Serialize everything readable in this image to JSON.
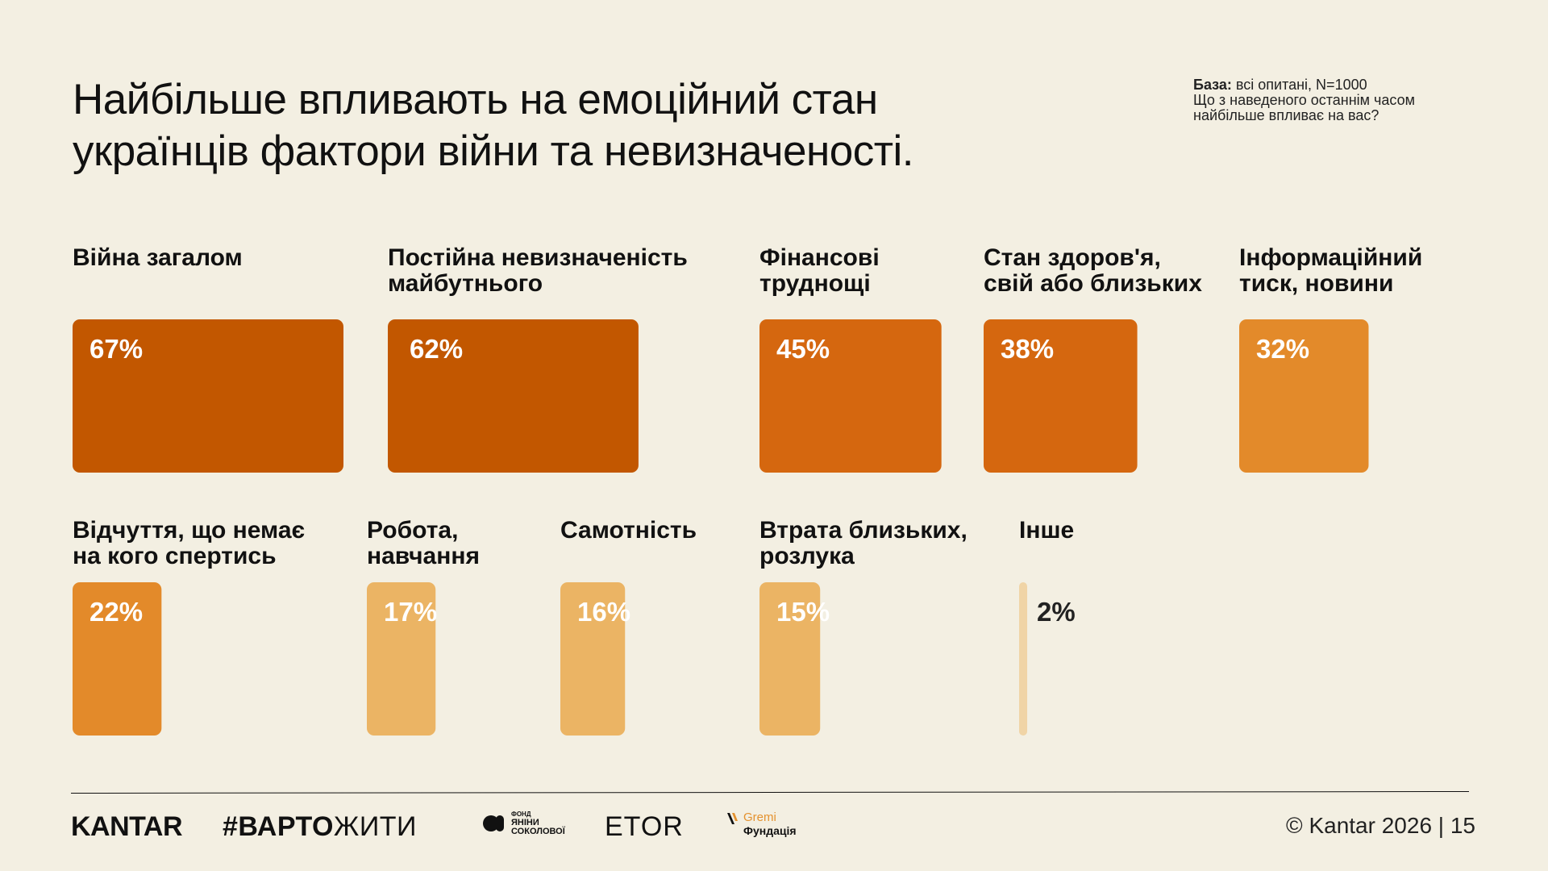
{
  "title_lines": [
    "Найбільше впливають на емоційний стан",
    "українців  фактори  війни та невизначеності."
  ],
  "base": {
    "label": "База:",
    "text": " всі опитані, N=1000",
    "question_line1": "Що з наведеного останнім часом",
    "question_line2": "найбільше впливає на вас?"
  },
  "chart_data": {
    "type": "bar",
    "unit": "%",
    "categories": [
      [
        "Війна загалом"
      ],
      [
        "Постійна невизначеність",
        "майбутнього"
      ],
      [
        "Фінансові",
        "труднощі"
      ],
      [
        "Стан здоров'я,",
        "свій або близьких"
      ],
      [
        "Інформаційний",
        "тиск, новини"
      ],
      [
        "Відчуття, що немає",
        "на кого спертись"
      ],
      [
        "Робота,",
        "навчання"
      ],
      [
        "Самотність"
      ],
      [
        "Втрата близьких,",
        "розлука"
      ],
      [
        "Інше"
      ]
    ],
    "values": [
      67,
      62,
      45,
      38,
      32,
      22,
      17,
      16,
      15,
      2
    ],
    "value_labels": [
      "67%",
      "62%",
      "45%",
      "38%",
      "32%",
      "22%",
      "17%",
      "16%",
      "15%",
      "2%"
    ],
    "colors": [
      "#c25700",
      "#c25700",
      "#d5670f",
      "#d5670f",
      "#e38a2a",
      "#e38a2a",
      "#ebb464",
      "#ebb464",
      "#ebb464",
      "#f0d4a6"
    ],
    "value_text_colors": [
      "#ffffff",
      "#ffffff",
      "#ffffff",
      "#ffffff",
      "#ffffff",
      "#ffffff",
      "#ffffff",
      "#ffffff",
      "#ffffff",
      "#222222"
    ]
  },
  "footer": {
    "kantar": "KANTAR",
    "varto_bold": "#ВАРТО",
    "varto_rest": "ЖИТИ",
    "fond_small": "ФОНД",
    "fond_line1": "ЯНІНИ",
    "fond_line2": "СОКОЛОВОЇ",
    "etor": "ETOR",
    "gremi_line1": "Gremi",
    "gremi_line2": "Фундація",
    "copyright": "© Kantar 2026 | 15"
  }
}
